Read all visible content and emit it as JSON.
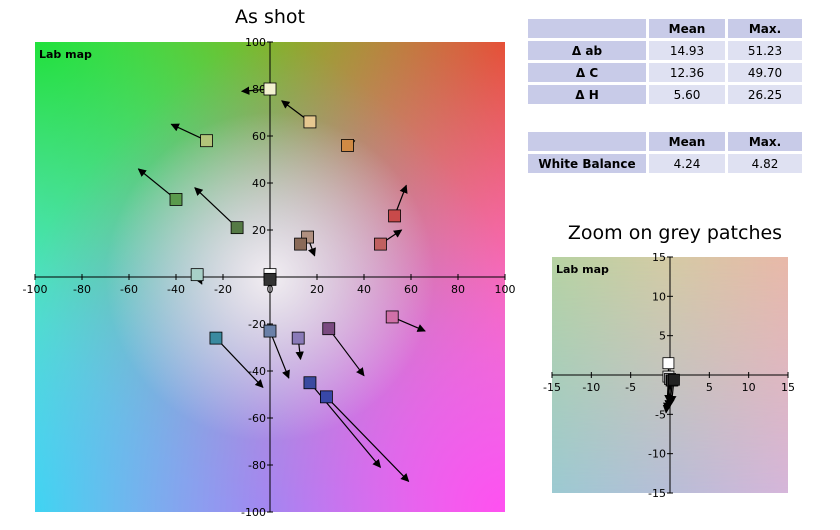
{
  "titles": {
    "main": "As shot",
    "zoom": "Zoom on grey patches"
  },
  "stats_table_1": {
    "headers": [
      "",
      "Mean",
      "Max."
    ],
    "rows": [
      {
        "label": "Δ ab",
        "mean": "14.93",
        "max": "51.23"
      },
      {
        "label": "Δ C",
        "mean": "12.36",
        "max": "49.70"
      },
      {
        "label": "Δ H",
        "mean": "5.60",
        "max": "26.25"
      }
    ]
  },
  "stats_table_2": {
    "headers": [
      "",
      "Mean",
      "Max."
    ],
    "rows": [
      {
        "label": "White Balance",
        "mean": "4.24",
        "max": "4.82"
      }
    ]
  },
  "chart_data": [
    {
      "type": "scatter",
      "title": "As shot",
      "map_label": "Lab map",
      "xlim": [
        -100,
        100
      ],
      "ylim": [
        -100,
        100
      ],
      "x_ticks": [
        -100,
        -80,
        -60,
        -40,
        -20,
        0,
        20,
        40,
        60,
        80,
        100
      ],
      "y_ticks": [
        -100,
        -80,
        -60,
        -40,
        -20,
        0,
        20,
        40,
        60,
        80,
        100
      ],
      "grid": false,
      "background": "Lab color map",
      "patches": [
        {
          "x": 0,
          "y": 80,
          "color": "#f2f2d0",
          "arrow_to": [
            -12,
            79
          ]
        },
        {
          "x": 17,
          "y": 66,
          "color": "#e6c890",
          "arrow_to": [
            5,
            75
          ]
        },
        {
          "x": -27,
          "y": 58,
          "color": "#b3c47a",
          "arrow_to": [
            -42,
            65
          ]
        },
        {
          "x": 33,
          "y": 56,
          "color": "#d08a44",
          "arrow_to": [
            36,
            58
          ]
        },
        {
          "x": -40,
          "y": 33,
          "color": "#5a9a4c",
          "arrow_to": [
            -56,
            46
          ]
        },
        {
          "x": -14,
          "y": 21,
          "color": "#557a45",
          "arrow_to": [
            -32,
            38
          ]
        },
        {
          "x": 53,
          "y": 26,
          "color": "#c84a4a",
          "arrow_to": [
            58,
            39
          ]
        },
        {
          "x": 47,
          "y": 14,
          "color": "#c06060",
          "arrow_to": [
            56,
            20
          ]
        },
        {
          "x": 16,
          "y": 17,
          "color": "#b09080",
          "arrow_to": [
            19,
            9
          ]
        },
        {
          "x": 13,
          "y": 14,
          "color": "#8a6a58",
          "arrow_to": [
            13,
            14
          ]
        },
        {
          "x": -31,
          "y": 1,
          "color": "#a8d0c8",
          "arrow_to": [
            -29,
            -3
          ]
        },
        {
          "x": 0,
          "y": 1,
          "color": "#ffffff",
          "arrow_to": [
            0,
            -2
          ]
        },
        {
          "x": 0,
          "y": -1,
          "color": "#333333",
          "arrow_to": [
            0,
            -3
          ]
        },
        {
          "x": 52,
          "y": -17,
          "color": "#d070a8",
          "arrow_to": [
            66,
            -23
          ]
        },
        {
          "x": -23,
          "y": -26,
          "color": "#3a8aa0",
          "arrow_to": [
            -3,
            -47
          ]
        },
        {
          "x": 0,
          "y": -23,
          "color": "#6a80a8",
          "arrow_to": [
            8,
            -43
          ]
        },
        {
          "x": 25,
          "y": -22,
          "color": "#7a4a80",
          "arrow_to": [
            40,
            -42
          ]
        },
        {
          "x": 12,
          "y": -26,
          "color": "#8a7ab8",
          "arrow_to": [
            13,
            -35
          ]
        },
        {
          "x": 17,
          "y": -45,
          "color": "#3a4aa0",
          "arrow_to": [
            47,
            -81
          ]
        },
        {
          "x": 24,
          "y": -51,
          "color": "#3848a8",
          "arrow_to": [
            59,
            -87
          ]
        }
      ]
    },
    {
      "type": "scatter",
      "title": "Zoom on grey patches",
      "map_label": "Lab map",
      "xlim": [
        -15,
        15
      ],
      "ylim": [
        -15,
        15
      ],
      "x_ticks": [
        -15,
        -10,
        -5,
        5,
        10,
        15
      ],
      "y_ticks": [
        -15,
        -10,
        -5,
        5,
        10,
        15
      ],
      "grid": false,
      "background": "Lab color map (zoomed)",
      "patches": [
        {
          "x": -0.2,
          "y": 1.5,
          "color": "#ffffff",
          "arrow_to": [
            -0.2,
            -3.5
          ]
        },
        {
          "x": -0.2,
          "y": -0.2,
          "color": "#e0e0e0",
          "arrow_to": [
            -0.4,
            -4.5
          ]
        },
        {
          "x": 0.0,
          "y": -0.5,
          "color": "#b0b0b0",
          "arrow_to": [
            -0.5,
            -4.8
          ]
        },
        {
          "x": 0.2,
          "y": -0.7,
          "color": "#707070",
          "arrow_to": [
            -0.3,
            -4.2
          ]
        },
        {
          "x": 0.3,
          "y": -0.7,
          "color": "#444444",
          "arrow_to": [
            0.0,
            -4.0
          ]
        },
        {
          "x": 0.5,
          "y": -0.6,
          "color": "#222222",
          "arrow_to": [
            0.2,
            -3.6
          ]
        }
      ]
    }
  ]
}
